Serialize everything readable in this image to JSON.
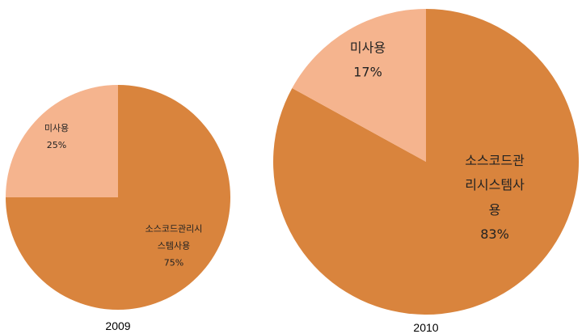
{
  "chart_data": [
    {
      "type": "pie",
      "title": "2009",
      "categories": [
        "소스코드관리시스템사용",
        "미사용"
      ],
      "values": [
        75,
        25
      ],
      "value_labels": [
        "75%",
        "25%"
      ],
      "colors": [
        "#d9843d",
        "#f5b48e"
      ]
    },
    {
      "type": "pie",
      "title": "2010",
      "categories": [
        "소스코드관리시스템사용",
        "미사용"
      ],
      "values": [
        83,
        17
      ],
      "value_labels": [
        "83%",
        "17%"
      ],
      "colors": [
        "#d9843d",
        "#f5b48e"
      ]
    }
  ]
}
